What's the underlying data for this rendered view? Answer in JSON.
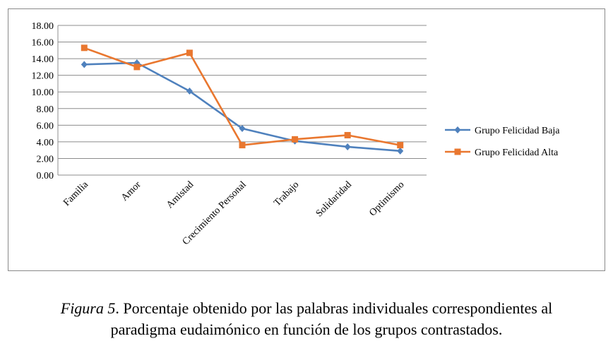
{
  "chart_data": {
    "type": "line",
    "categories": [
      "Familia",
      "Amor",
      "Amistad",
      "Crecimiento Personal",
      "Trabajo",
      "Solidaridad",
      "Optimismo"
    ],
    "series": [
      {
        "name": "Grupo Felicidad Baja",
        "values": [
          13.3,
          13.5,
          10.1,
          5.6,
          4.1,
          3.4,
          2.9
        ],
        "color": "#4f81bd",
        "marker": "diamond"
      },
      {
        "name": "Grupo Felicidad Alta",
        "values": [
          15.3,
          13.0,
          14.7,
          3.6,
          4.3,
          4.8,
          3.6
        ],
        "color": "#e9772f",
        "marker": "square"
      }
    ],
    "y_ticks": [
      "0.00",
      "2.00",
      "4.00",
      "6.00",
      "8.00",
      "10.00",
      "12.00",
      "14.00",
      "16.00",
      "18.00"
    ],
    "ylim": [
      0,
      18
    ],
    "grid": true,
    "legend_position": "right"
  },
  "caption": {
    "label": "Figura 5",
    "text": ". Porcentaje obtenido por las palabras individuales correspondientes al",
    "line2": "paradigma eudaimónico en función de los grupos contrastados."
  }
}
